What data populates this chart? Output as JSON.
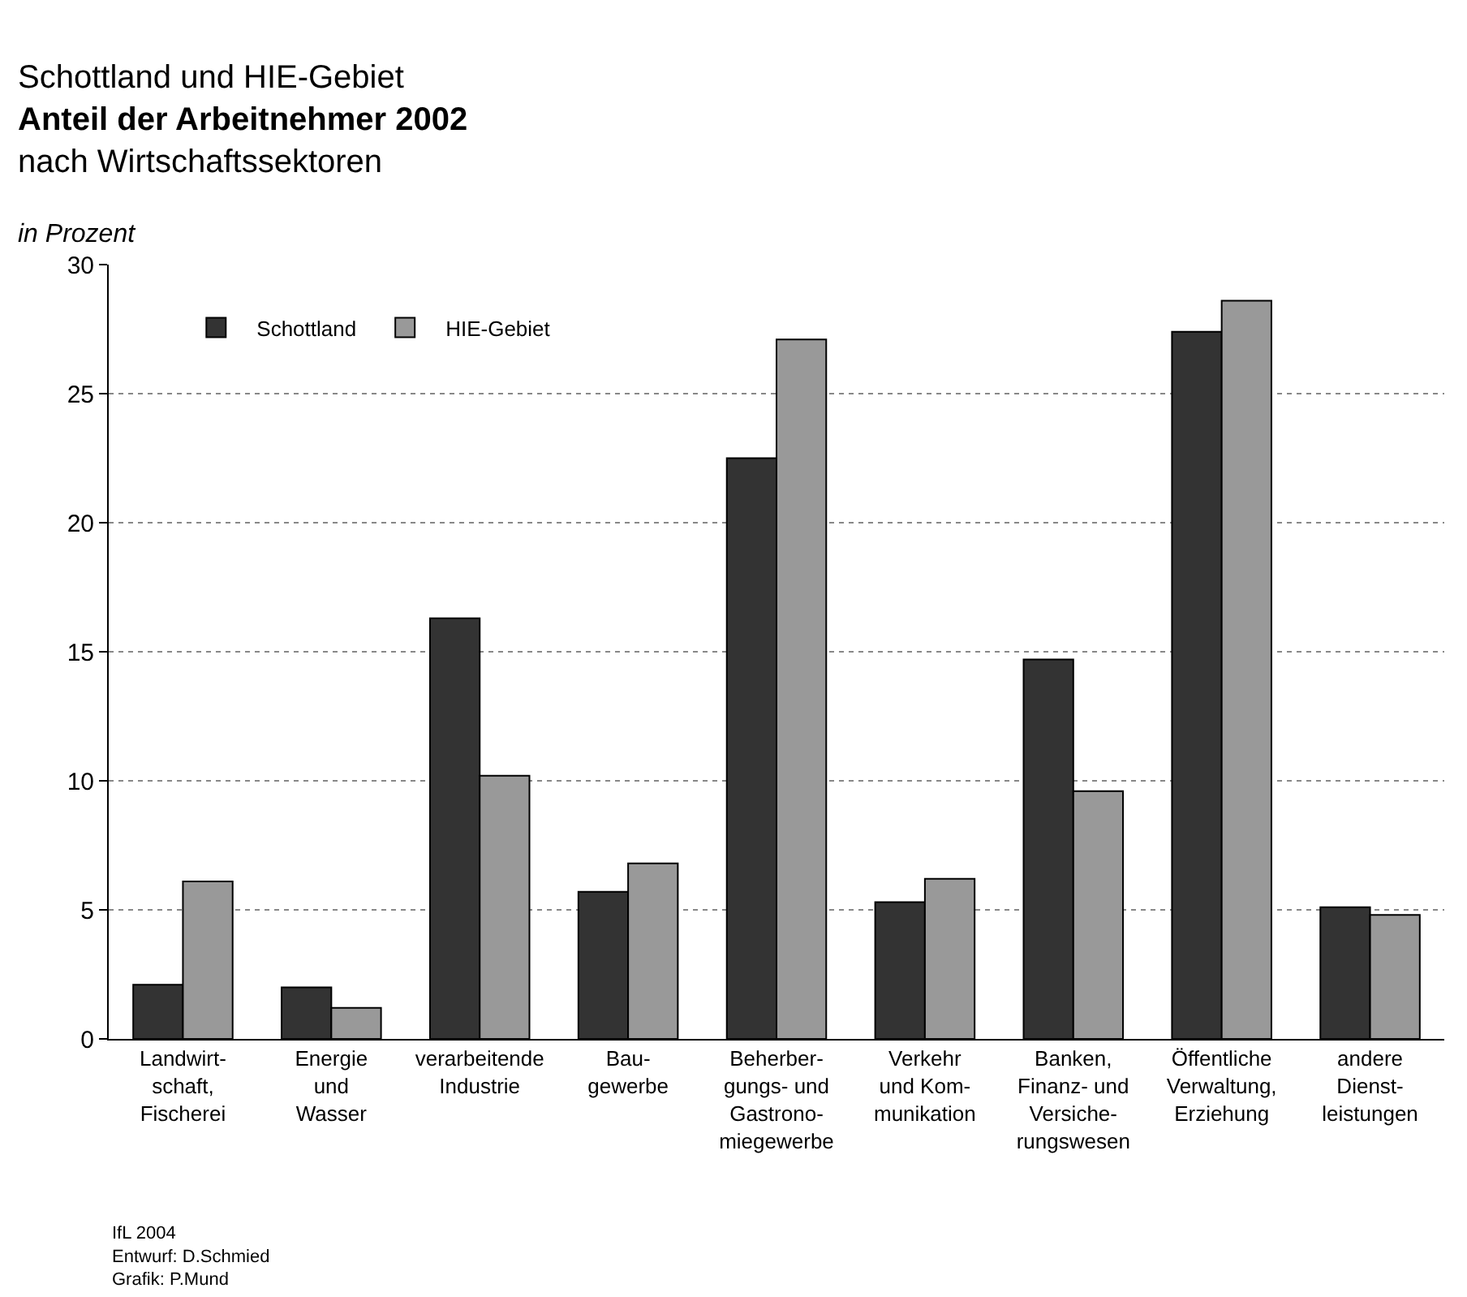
{
  "chart_data": {
    "type": "bar",
    "title": "Schottland und HIE-Gebiet\nAnteil der Arbeitnehmer 2002",
    "subtitle": "nach Wirtschaftssektoren",
    "ylabel": "in Prozent",
    "categories": [
      "Landwirt-\nschaft,\nFischerei",
      "Energie\nund\nWasser",
      "verarbeitende\nIndustrie",
      "Bau-\ngewerbe",
      "Beherber-\ngungs- und\nGastrono-\nmiegewerbe",
      "Verkehr\nund Kom-\nmunikation",
      "Banken,\nFinanz- und\nVersiche-\nrungswesen",
      "Öffentliche\nVerwaltung,\nErziehung",
      "andere\nDienst-\nleistungen"
    ],
    "series": [
      {
        "name": "Schottland",
        "color": "#333333",
        "values": [
          2.1,
          2.0,
          16.3,
          5.7,
          22.5,
          5.3,
          14.7,
          27.4,
          5.1
        ]
      },
      {
        "name": "HIE-Gebiet",
        "color": "#999999",
        "values": [
          6.1,
          1.2,
          10.2,
          6.8,
          27.1,
          6.2,
          9.6,
          28.6,
          4.8
        ]
      }
    ],
    "ylim": [
      0,
      30
    ],
    "yticks": [
      0,
      5,
      10,
      15,
      20,
      25,
      30
    ],
    "grid": "y",
    "legend": "top left",
    "annotations": [
      "IfL 2004",
      "Entwurf: D.Schmied",
      "Grafik: P.Mund"
    ]
  }
}
